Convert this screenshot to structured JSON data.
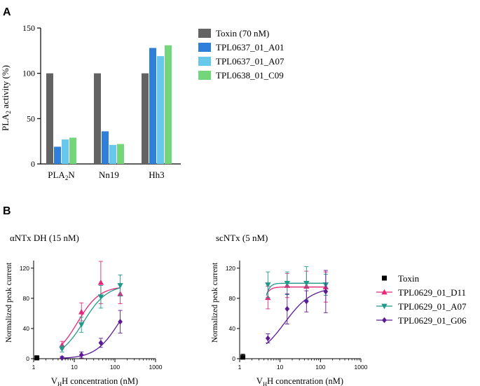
{
  "chart_data": [
    {
      "panel": "A",
      "type": "bar",
      "title": "",
      "ylabel": "PLA2 activity (%)",
      "ylabel_main": "PLA",
      "ylabel_sub": "2",
      "ylabel_rest": " activity (%)",
      "ylim": [
        0,
        150
      ],
      "yticks": [
        0,
        50,
        100,
        150
      ],
      "categories": [
        "PLA2N",
        "Nn19",
        "Hh3"
      ],
      "category_display": [
        {
          "main": "PLA",
          "sub": "2",
          "rest": "N"
        },
        {
          "main": "Nn19",
          "sub": "",
          "rest": ""
        },
        {
          "main": "Hh3",
          "sub": "",
          "rest": ""
        }
      ],
      "series": [
        {
          "name": "Toxin (70 nM)",
          "color": "#636363",
          "values": [
            100,
            100,
            100
          ]
        },
        {
          "name": "TPL0637_01_A01",
          "color": "#2e7fd9",
          "values": [
            19,
            36,
            128
          ]
        },
        {
          "name": "TPL0637_01_A07",
          "color": "#68c8ec",
          "values": [
            27,
            21,
            119
          ]
        },
        {
          "name": "TPL0638_01_C09",
          "color": "#74d67a",
          "values": [
            29,
            22,
            131
          ]
        }
      ],
      "legend": "right"
    },
    {
      "panel": "B-left",
      "type": "scatter",
      "title": "αNTx DH (15 nM)",
      "xlabel": "VHH concentration (nM)",
      "xlabel_main": "V",
      "xlabel_sub": "H",
      "xlabel_rest": "H concentration (nM)",
      "ylabel": "Normalized peak current",
      "xscale": "log",
      "xlim": [
        1,
        1000
      ],
      "xticks": [
        1,
        10,
        100,
        1000
      ],
      "ylim": [
        0,
        130
      ],
      "yticks": [
        0,
        40,
        80,
        120
      ],
      "series": [
        {
          "name": "Toxin",
          "marker": "square",
          "color": "#000000",
          "x": [
            1.2
          ],
          "y": [
            1
          ],
          "err": [
            3
          ],
          "ec50": null
        },
        {
          "name": "TPL0629_01_D11",
          "marker": "triangle-up",
          "color": "#e8267a",
          "x": [
            5,
            15,
            45,
            135
          ],
          "y": [
            18,
            62,
            101,
            86
          ],
          "err": [
            5,
            12,
            28,
            13
          ],
          "ec50": 12,
          "hill": 1.6,
          "bottom": 0,
          "top": 96
        },
        {
          "name": "TPL0629_01_A07",
          "marker": "triangle-down",
          "color": "#1f9a8a",
          "x": [
            5,
            15,
            45,
            135
          ],
          "y": [
            13,
            45,
            82,
            97
          ],
          "err": [
            4,
            10,
            15,
            14
          ],
          "ec50": 17,
          "hill": 1.5,
          "bottom": 0,
          "top": 98
        },
        {
          "name": "TPL0629_01_G06",
          "marker": "diamond",
          "color": "#5b1a96",
          "x": [
            5,
            15,
            45,
            135
          ],
          "y": [
            1,
            5,
            21,
            49
          ],
          "err": [
            2,
            4,
            6,
            15
          ],
          "ec50": 125,
          "hill": 1.5,
          "bottom": 0,
          "top": 95
        }
      ]
    },
    {
      "panel": "B-right",
      "type": "scatter",
      "title": "scNTx (5 nM)",
      "xlabel": "VHH concentration (nM)",
      "xlabel_main": "V",
      "xlabel_sub": "H",
      "xlabel_rest": "H concentration (nM)",
      "ylabel": "Normalized peak current",
      "xscale": "log",
      "xlim": [
        1,
        1000
      ],
      "xticks": [
        1,
        10,
        100,
        1000
      ],
      "ylim": [
        0,
        130
      ],
      "yticks": [
        0,
        40,
        80,
        120
      ],
      "series": [
        {
          "name": "Toxin",
          "marker": "square",
          "color": "#000000",
          "x": [
            1.2
          ],
          "y": [
            2
          ],
          "err": [
            4
          ],
          "ec50": null
        },
        {
          "name": "TPL0629_01_D11",
          "marker": "triangle-up",
          "color": "#e8267a",
          "x": [
            5,
            15,
            45,
            135
          ],
          "y": [
            81,
            97,
            96,
            95
          ],
          "err": [
            15,
            16,
            20,
            20
          ],
          "ec50": 3,
          "hill": 5,
          "bottom": 0,
          "top": 95
        },
        {
          "name": "TPL0629_01_A07",
          "marker": "triangle-down",
          "color": "#1f9a8a",
          "x": [
            5,
            15,
            45,
            135
          ],
          "y": [
            98,
            100,
            100,
            98
          ],
          "err": [
            17,
            15,
            22,
            14
          ],
          "ec50": 3.5,
          "hill": 6,
          "bottom": 0,
          "top": 100
        },
        {
          "name": "TPL0629_01_G06",
          "marker": "diamond",
          "color": "#5b1a96",
          "x": [
            5,
            15,
            45,
            135
          ],
          "y": [
            27,
            66,
            76,
            89
          ],
          "err": [
            6,
            20,
            14,
            28
          ],
          "ec50": 13,
          "hill": 1.3,
          "bottom": 0,
          "top": 95
        }
      ],
      "legend": "right"
    }
  ],
  "labels": {
    "panel_a": "A",
    "panel_b": "B"
  }
}
